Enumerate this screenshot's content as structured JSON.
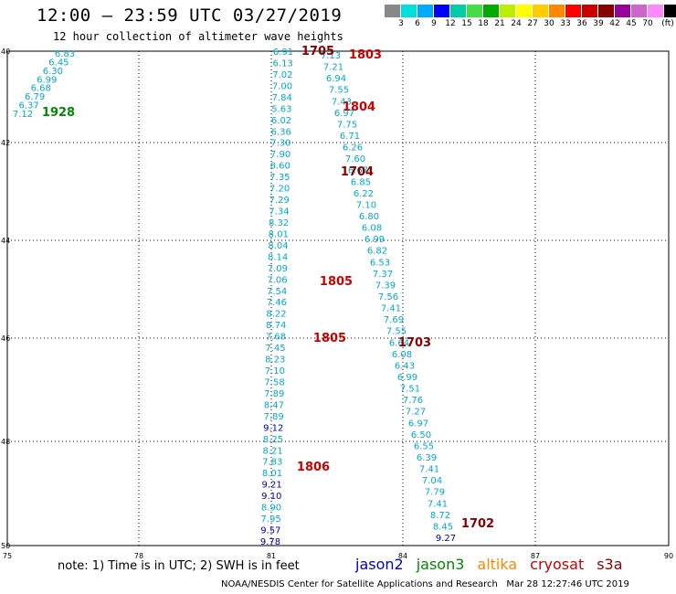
{
  "title": "12:00 – 23:59 UTC 03/27/2019",
  "subtitle": "12 hour collection of altimeter wave heights",
  "scale": {
    "unit": "(ft)",
    "colors": [
      "#888888",
      "#00dddd",
      "#00aaff",
      "#0000ff",
      "#00ccaa",
      "#44dd44",
      "#00aa00",
      "#bbee00",
      "#ffff00",
      "#ffcc00",
      "#ff8800",
      "#ff0000",
      "#cc0000",
      "#880000",
      "#990099",
      "#cc66cc",
      "#ff88ff",
      "#000000"
    ],
    "labels": [
      "3",
      "6",
      "9",
      "12",
      "15",
      "18",
      "21",
      "24",
      "27",
      "30",
      "33",
      "36",
      "39",
      "42",
      "45",
      "70"
    ]
  },
  "axes": {
    "lon_labels": [
      "75",
      "78",
      "81",
      "84",
      "87",
      "90"
    ],
    "lat_labels": [
      "40",
      "42",
      "44",
      "46",
      "48",
      "50"
    ]
  },
  "note": "note: 1) Time is in UTC; 2) SWH is in feet",
  "legend": [
    {
      "name": "jason2",
      "color": "#0000cc"
    },
    {
      "name": "jason3",
      "color": "#008800"
    },
    {
      "name": "altika",
      "color": "#ff8800"
    },
    {
      "name": "cryosat",
      "color": "#cc0000"
    },
    {
      "name": "s3a",
      "color": "#880000"
    }
  ],
  "credit": "NOAA/NESDIS Center for Satellite Applications and Research   Mar 28 12:27:46 UTC 2019",
  "map_data": {
    "time_labels": [
      {
        "text": "1928",
        "color": "#008800"
      },
      {
        "text": "1705",
        "color": "#880000"
      },
      {
        "text": "1803",
        "color": "#cc0000"
      },
      {
        "text": "1804",
        "color": "#cc0000"
      },
      {
        "text": "1704",
        "color": "#880000"
      },
      {
        "text": "1805",
        "color": "#cc0000"
      },
      {
        "text": "1805",
        "color": "#cc0000"
      },
      {
        "text": "1703",
        "color": "#880000"
      },
      {
        "text": "1806",
        "color": "#cc0000"
      },
      {
        "text": "1702",
        "color": "#880000"
      }
    ],
    "tracks": [
      {
        "name": "jason3-track",
        "color": "#00aacc",
        "values": [
          "6.83",
          "6.45",
          "6.30",
          "6.99",
          "6.68",
          "6.79",
          "6.37",
          "7.12"
        ]
      },
      {
        "name": "cryosat-track",
        "color": "#00aacc",
        "values": [
          "6.91",
          "6.13",
          "7.02",
          "7.00",
          "7.84",
          "5.63",
          "6.02",
          "6.36",
          "7.30",
          "7.90",
          "8.60",
          "7.35",
          "7.20",
          "7.29",
          "7.34",
          "8.32",
          "8.01",
          "8.04",
          "8.14",
          "7.09",
          "7.06",
          "7.54",
          "7.46",
          "8.22",
          "8.74",
          "7.68",
          "7.45",
          "8.23",
          "7.10",
          "7.58",
          "7.89",
          "8.47",
          "7.89",
          "9.12",
          "8.25",
          "8.21",
          "7.83",
          "8.01",
          "9.21",
          "9.10",
          "8.90",
          "7.95",
          "9.57",
          "9.78"
        ],
        "dark": [
          "9.12",
          "9.21",
          "9.10",
          "9.57",
          "9.78"
        ]
      },
      {
        "name": "s3a-track",
        "color": "#00aacc",
        "values": [
          "7.13",
          "7.21",
          "6.94",
          "7.55",
          "7.43",
          "6.97",
          "7.75",
          "6.71",
          "6.26",
          "7.60",
          "6.67",
          "6.85",
          "6.22",
          "7.10",
          "6.80",
          "6.08",
          "6.99",
          "6.82",
          "6.53",
          "7.37",
          "7.39",
          "7.56",
          "7.41",
          "7.69",
          "7.55",
          "6.64",
          "6.08",
          "6.43",
          "6.99",
          "7.51",
          "7.76",
          "7.27",
          "6.97",
          "6.50",
          "6.55",
          "6.39",
          "7.41",
          "7.04",
          "7.79",
          "7.41",
          "8.72",
          "8.45",
          "9.27"
        ],
        "dark": [
          "9.27"
        ]
      }
    ]
  }
}
